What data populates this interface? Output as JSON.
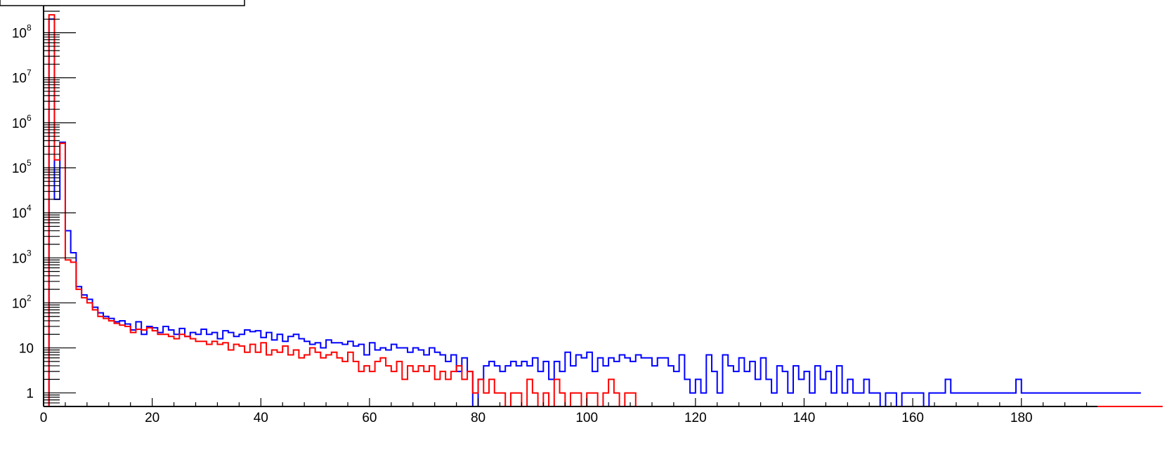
{
  "chart_data": {
    "type": "histogram",
    "x_axis": {
      "range": [
        0,
        194
      ],
      "major_ticks": [
        0,
        20,
        40,
        60,
        80,
        100,
        120,
        140,
        160,
        180
      ],
      "tick_labels": [
        "0",
        "20",
        "40",
        "60",
        "80",
        "100",
        "120",
        "140",
        "160",
        "180"
      ]
    },
    "y_axis": {
      "scale": "log",
      "range": [
        0.5,
        400000000
      ],
      "major_ticks": [
        1,
        10,
        100,
        1000,
        10000,
        100000,
        1000000,
        10000000,
        100000000
      ],
      "tick_labels": [
        {
          "base": "1",
          "exp": ""
        },
        {
          "base": "10",
          "exp": ""
        },
        {
          "base": "10",
          "exp": "2"
        },
        {
          "base": "10",
          "exp": "3"
        },
        {
          "base": "10",
          "exp": "4"
        },
        {
          "base": "10",
          "exp": "5"
        },
        {
          "base": "10",
          "exp": "6"
        },
        {
          "base": "10",
          "exp": "7"
        },
        {
          "base": "10",
          "exp": "8"
        }
      ]
    },
    "bin_width": 1,
    "grid": false,
    "series": [
      {
        "color": "#0000ff",
        "x_start": 1,
        "values": [
          200000000,
          20000,
          370000,
          4000,
          1300,
          230,
          150,
          120,
          80,
          60,
          50,
          45,
          38,
          40,
          34,
          25,
          38,
          20,
          30,
          28,
          22,
          30,
          25,
          20,
          27,
          18,
          22,
          20,
          26,
          20,
          22,
          16,
          24,
          22,
          18,
          20,
          25,
          23,
          24,
          17,
          22,
          15,
          20,
          14,
          18,
          20,
          16,
          14,
          12,
          13,
          10,
          15,
          13,
          13,
          12,
          14,
          11,
          12,
          7,
          13,
          9,
          10,
          9,
          12,
          10,
          10,
          8,
          10,
          9,
          7,
          10,
          8,
          7,
          5,
          7,
          3,
          6,
          3,
          0.5,
          2,
          4,
          5,
          4,
          3,
          4,
          5,
          4,
          5,
          4,
          6,
          3,
          5,
          2,
          5,
          3,
          8,
          4,
          7,
          6,
          8,
          3,
          6,
          4,
          6,
          5,
          7,
          6,
          5,
          7,
          6,
          6,
          4,
          6,
          6,
          4,
          3,
          7,
          2,
          1,
          2,
          1,
          7,
          3,
          1,
          7,
          4,
          3,
          6,
          3,
          5,
          2,
          6,
          2,
          1,
          4,
          3,
          1,
          4,
          2,
          3,
          1,
          4,
          2,
          3,
          1,
          4,
          1,
          2,
          1,
          1,
          2,
          1,
          1,
          0.5,
          1,
          1,
          0.5,
          1,
          1,
          1,
          1,
          0.5,
          1,
          1,
          1,
          2,
          1,
          1,
          1,
          1,
          1,
          1,
          1,
          1,
          1,
          1,
          1,
          1,
          2,
          1,
          1,
          1,
          1,
          1,
          1,
          1,
          1,
          1,
          1,
          1,
          1,
          1,
          1,
          1,
          1,
          1,
          1,
          1,
          1,
          1,
          1
        ]
      },
      {
        "color": "#ff0000",
        "x_start": 1,
        "values": [
          250000000,
          150000,
          350000,
          900,
          800,
          200,
          130,
          100,
          70,
          50,
          45,
          40,
          35,
          32,
          30,
          22,
          26,
          25,
          28,
          24,
          20,
          20,
          18,
          16,
          20,
          18,
          16,
          14,
          14,
          12,
          14,
          12,
          13,
          9,
          12,
          11,
          8,
          12,
          8,
          13,
          7,
          9,
          8,
          11,
          7,
          9,
          6,
          7,
          10,
          8,
          6,
          7,
          8,
          6,
          5,
          8,
          5,
          3,
          4,
          3,
          5,
          6,
          4,
          3,
          5,
          2,
          4,
          3,
          4,
          3,
          4,
          2,
          3,
          2,
          3,
          4,
          2,
          3,
          1,
          2,
          1,
          2,
          1,
          1,
          0.5,
          1,
          1,
          0.5,
          2,
          1,
          0.5,
          1,
          0.5,
          2,
          1,
          0.5,
          1,
          1,
          0.5,
          1,
          1,
          0.5,
          1,
          2,
          1,
          0.5,
          1,
          1,
          0.5,
          0.5,
          0.5,
          0.5,
          0.5,
          0.5,
          0.5,
          0.5,
          0.5,
          0.5,
          0.5,
          0.5,
          0.5,
          0.5,
          0.5,
          0.5,
          0.5,
          0.5,
          0.5,
          0.5,
          0.5,
          0.5,
          0.5,
          0.5,
          0.5,
          0.5,
          0.5,
          0.5,
          0.5,
          0.5,
          0.5,
          0.5,
          0.5,
          0.5,
          0.5,
          0.5,
          0.5,
          0.5,
          0.5,
          0.5,
          0.5,
          0.5,
          0.5,
          0.5,
          0.5,
          0.5,
          0.5,
          0.5,
          0.5,
          0.5,
          0.5,
          0.5,
          0.5,
          0.5,
          0.5,
          0.5,
          0.5,
          0.5,
          0.5,
          0.5,
          0.5,
          0.5,
          0.5,
          0.5,
          0.5,
          0.5,
          0.5,
          0.5,
          0.5,
          0.5,
          0.5,
          0.5,
          0.5,
          0.5,
          0.5,
          0.5,
          0.5,
          0.5,
          0.5,
          0.5,
          0.5,
          0.5,
          0.5,
          0.5,
          0.5,
          0.5,
          0.5,
          0.5,
          0.5,
          0.5,
          0.5,
          0.5,
          0.5,
          0.5,
          0.5,
          0.5,
          0.5
        ]
      }
    ],
    "legend": {
      "position": "top-left",
      "entries": []
    }
  }
}
